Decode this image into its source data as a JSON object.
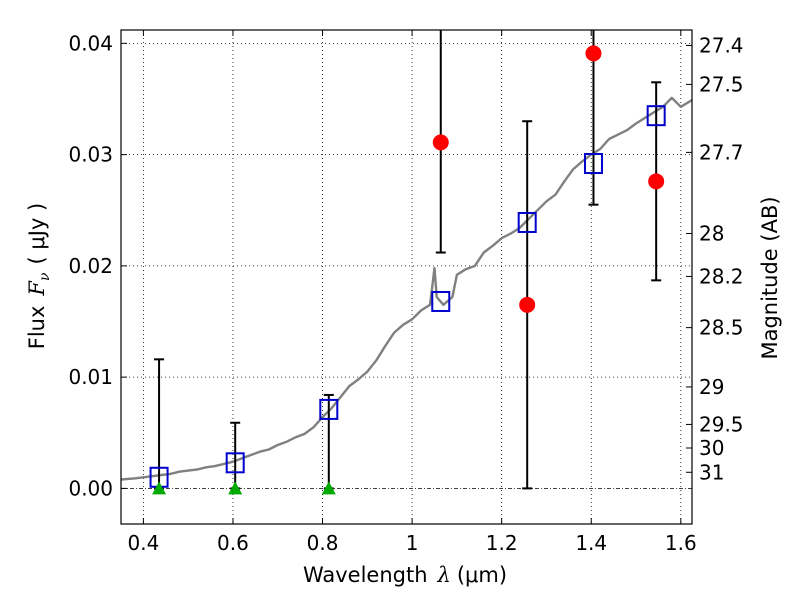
{
  "chart_data": {
    "type": "scatter",
    "xlabel": "Wavelength",
    "xlabel_symbol": "λ",
    "xlabel_unit": "(μm)",
    "ylabel": "Flux",
    "ylabel_symbol": "F",
    "ylabel_subscript": "ν",
    "ylabel_unit": "( μJy )",
    "ylabel_right": "Magnitude (AB)",
    "xlim": [
      0.35,
      1.625
    ],
    "ylim": [
      -0.0032,
      0.0412
    ],
    "grid": true,
    "x_ticks": [
      {
        "value": 0.4,
        "label": "0.4"
      },
      {
        "value": 0.6,
        "label": "0.6"
      },
      {
        "value": 0.8,
        "label": "0.8"
      },
      {
        "value": 1.0,
        "label": "1"
      },
      {
        "value": 1.2,
        "label": "1.2"
      },
      {
        "value": 1.4,
        "label": "1.4"
      },
      {
        "value": 1.6,
        "label": "1.6"
      }
    ],
    "y_ticks": [
      {
        "value": 0.0,
        "label": "0.00"
      },
      {
        "value": 0.01,
        "label": "0.01"
      },
      {
        "value": 0.02,
        "label": "0.02"
      },
      {
        "value": 0.03,
        "label": "0.03"
      },
      {
        "value": 0.04,
        "label": "0.04"
      }
    ],
    "right_ticks": [
      {
        "flux": 0.03981,
        "label": "27.4"
      },
      {
        "flux": 0.03631,
        "label": "27.5"
      },
      {
        "flux": 0.0302,
        "label": "27.7"
      },
      {
        "flux": 0.02291,
        "label": "28"
      },
      {
        "flux": 0.01905,
        "label": "28.2"
      },
      {
        "flux": 0.01445,
        "label": "28.5"
      },
      {
        "flux": 0.00912,
        "label": "29"
      },
      {
        "flux": 0.00575,
        "label": "29.5"
      },
      {
        "flux": 0.00363,
        "label": "30"
      },
      {
        "flux": 0.00145,
        "label": "31"
      }
    ],
    "series": [
      {
        "name": "model-spectrum",
        "kind": "line",
        "color": "#808080",
        "points": [
          [
            0.35,
            0.0008
          ],
          [
            0.38,
            0.0009
          ],
          [
            0.4,
            0.001
          ],
          [
            0.42,
            0.0011
          ],
          [
            0.44,
            0.0012
          ],
          [
            0.46,
            0.0013
          ],
          [
            0.48,
            0.0015
          ],
          [
            0.5,
            0.0016
          ],
          [
            0.52,
            0.0017
          ],
          [
            0.54,
            0.0019
          ],
          [
            0.56,
            0.002
          ],
          [
            0.58,
            0.0022
          ],
          [
            0.6,
            0.0024
          ],
          [
            0.62,
            0.0027
          ],
          [
            0.64,
            0.003
          ],
          [
            0.66,
            0.0033
          ],
          [
            0.68,
            0.0035
          ],
          [
            0.7,
            0.0039
          ],
          [
            0.72,
            0.0042
          ],
          [
            0.74,
            0.0046
          ],
          [
            0.76,
            0.0049
          ],
          [
            0.78,
            0.0055
          ],
          [
            0.8,
            0.0064
          ],
          [
            0.82,
            0.0072
          ],
          [
            0.84,
            0.0082
          ],
          [
            0.86,
            0.0092
          ],
          [
            0.88,
            0.0098
          ],
          [
            0.9,
            0.0105
          ],
          [
            0.92,
            0.0115
          ],
          [
            0.94,
            0.0128
          ],
          [
            0.96,
            0.014
          ],
          [
            0.98,
            0.0147
          ],
          [
            1.0,
            0.0152
          ],
          [
            1.02,
            0.016
          ],
          [
            1.04,
            0.0165
          ],
          [
            1.05,
            0.0198
          ],
          [
            1.055,
            0.0172
          ],
          [
            1.07,
            0.0165
          ],
          [
            1.09,
            0.0172
          ],
          [
            1.1,
            0.0192
          ],
          [
            1.12,
            0.0197
          ],
          [
            1.14,
            0.02
          ],
          [
            1.16,
            0.0212
          ],
          [
            1.18,
            0.0218
          ],
          [
            1.2,
            0.0225
          ],
          [
            1.22,
            0.0229
          ],
          [
            1.24,
            0.0234
          ],
          [
            1.26,
            0.0242
          ],
          [
            1.28,
            0.025
          ],
          [
            1.3,
            0.0258
          ],
          [
            1.32,
            0.0264
          ],
          [
            1.34,
            0.0276
          ],
          [
            1.36,
            0.0287
          ],
          [
            1.38,
            0.0294
          ],
          [
            1.4,
            0.03
          ],
          [
            1.42,
            0.0305
          ],
          [
            1.44,
            0.0314
          ],
          [
            1.46,
            0.0318
          ],
          [
            1.48,
            0.0322
          ],
          [
            1.5,
            0.0328
          ],
          [
            1.52,
            0.0333
          ],
          [
            1.54,
            0.0338
          ],
          [
            1.56,
            0.0343
          ],
          [
            1.58,
            0.0351
          ],
          [
            1.6,
            0.0343
          ],
          [
            1.625,
            0.0349
          ]
        ]
      },
      {
        "name": "model-photometry",
        "kind": "open-square",
        "color": "#0000cc",
        "points": [
          [
            0.435,
            0.001
          ],
          [
            0.605,
            0.0023
          ],
          [
            0.814,
            0.0071
          ],
          [
            1.064,
            0.0168
          ],
          [
            1.257,
            0.0239
          ],
          [
            1.405,
            0.0292
          ],
          [
            1.545,
            0.0335
          ]
        ]
      },
      {
        "name": "detections",
        "kind": "filled-circle",
        "color": "#ff0000",
        "points": [
          [
            1.064,
            0.0311
          ],
          [
            1.257,
            0.0165
          ],
          [
            1.405,
            0.0391
          ],
          [
            1.545,
            0.0276
          ]
        ],
        "errors": [
          [
            0.0212,
            0.0412
          ],
          [
            0.0,
            0.033
          ],
          [
            0.0255,
            0.0412
          ],
          [
            0.0187,
            0.0365
          ]
        ]
      },
      {
        "name": "upper-limits",
        "kind": "filled-triangle",
        "color": "#00aa00",
        "points": [
          [
            0.435,
            0.0
          ],
          [
            0.605,
            0.0
          ],
          [
            0.814,
            0.0
          ]
        ],
        "errors": [
          [
            0.0,
            0.0116
          ],
          [
            0.0,
            0.0059
          ],
          [
            0.0,
            0.0084
          ]
        ]
      }
    ]
  }
}
